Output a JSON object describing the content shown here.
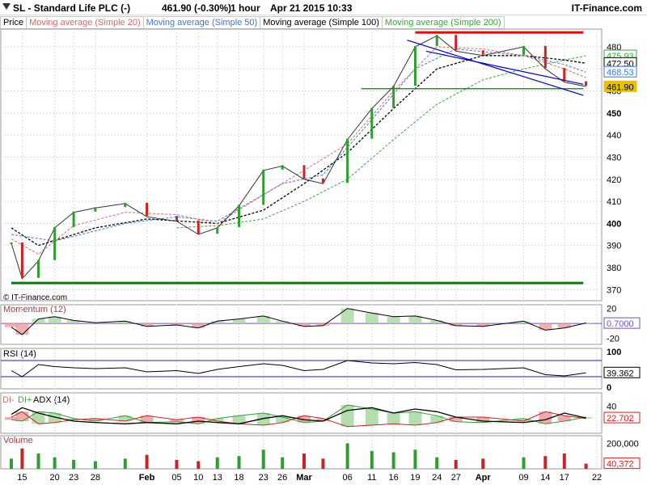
{
  "header": {
    "instrument": "SL - Standard Life PLC (-)",
    "price": "461.90 (-0.30%)",
    "interval": "1 hour",
    "datetime": "Apr 21 2015 10:33",
    "brand": "IT-Finance.com"
  },
  "legend": [
    {
      "label": "Price",
      "color": "#000000"
    },
    {
      "label": "Moving average (Simple 20)",
      "color": "#e06666"
    },
    {
      "label": "Moving average (Simple 50)",
      "color": "#3c78d8"
    },
    {
      "label": "Moving average (Simple 100)",
      "color": "#000000"
    },
    {
      "label": "Moving average (Simple 200)",
      "color": "#38a838"
    }
  ],
  "copyright": "© IT-Finance.com",
  "colors": {
    "up": "#2e9e2e",
    "down": "#cc2222",
    "ma20": "#e06666",
    "ma50": "#3c78d8",
    "ma100": "#000000",
    "ma200": "#38a838",
    "grid": "#dcdcdc"
  },
  "chart_data": [
    {
      "type": "line",
      "panel": "price",
      "ylim": [
        365,
        488
      ],
      "y_ticks": [
        370,
        380,
        390,
        400,
        410,
        420,
        430,
        440,
        450,
        460,
        470,
        480
      ],
      "y_tick_labels": [
        "370",
        "380",
        "390",
        "400",
        "410",
        "420",
        "430",
        "440",
        "450",
        "460",
        "470",
        "480"
      ],
      "x_ticks": [
        {
          "label": "15",
          "x": 0.24
        },
        {
          "label": "20",
          "x": 0.36
        },
        {
          "label": "23",
          "x": 0.43
        },
        {
          "label": "28",
          "x": 0.51
        },
        {
          "label": "Feb",
          "x": 0.7
        },
        {
          "label": "05",
          "x": 0.81
        },
        {
          "label": "10",
          "x": 0.89
        },
        {
          "label": "13",
          "x": 0.96
        },
        {
          "label": "18",
          "x": 1.04
        },
        {
          "label": "23",
          "x": 1.13
        },
        {
          "label": "26",
          "x": 1.2
        },
        {
          "label": "Mar",
          "x": 1.28
        },
        {
          "label": "06",
          "x": 1.44
        },
        {
          "label": "11",
          "x": 1.53
        },
        {
          "label": "16",
          "x": 1.61
        },
        {
          "label": "19",
          "x": 1.69
        },
        {
          "label": "24",
          "x": 1.77
        },
        {
          "label": "27",
          "x": 1.84
        },
        {
          "label": "Apr",
          "x": 1.94
        },
        {
          "label": "09",
          "x": 2.09
        },
        {
          "label": "14",
          "x": 2.17
        },
        {
          "label": "17",
          "x": 2.24
        },
        {
          "label": "22",
          "x": 2.36
        }
      ],
      "price": {
        "x": [
          0.2,
          0.24,
          0.3,
          0.36,
          0.43,
          0.51,
          0.62,
          0.7,
          0.81,
          0.89,
          0.96,
          1.04,
          1.13,
          1.2,
          1.28,
          1.35,
          1.44,
          1.53,
          1.61,
          1.69,
          1.77,
          1.84,
          1.94,
          2.09,
          2.17,
          2.24,
          2.32
        ],
        "y": [
          391,
          375,
          383,
          398,
          405,
          407,
          409,
          403,
          401,
          395,
          398,
          408,
          424,
          426,
          420,
          418,
          438,
          452,
          462,
          480,
          485,
          478,
          476,
          480,
          470,
          464,
          462
        ]
      },
      "ma20": {
        "x": [
          0.2,
          0.3,
          0.43,
          0.62,
          0.81,
          0.96,
          1.13,
          1.28,
          1.44,
          1.61,
          1.77,
          1.94,
          2.09,
          2.24,
          2.32
        ],
        "y": [
          393,
          386,
          399,
          405,
          404,
          400,
          413,
          424,
          436,
          460,
          480,
          479,
          476,
          470,
          466
        ]
      },
      "ma50": {
        "x": [
          0.2,
          0.36,
          0.62,
          0.81,
          0.96,
          1.2,
          1.35,
          1.53,
          1.69,
          1.84,
          2.09,
          2.24,
          2.32
        ],
        "y": [
          395,
          392,
          400,
          403,
          401,
          418,
          422,
          447,
          470,
          479,
          476,
          472,
          468.5
        ]
      },
      "ma100": {
        "x": [
          0.2,
          0.3,
          0.51,
          0.7,
          0.96,
          1.13,
          1.28,
          1.44,
          1.61,
          1.77,
          1.94,
          2.09,
          2.24,
          2.32
        ],
        "y": [
          398,
          390,
          398,
          402,
          400,
          406,
          418,
          432,
          452,
          470,
          476,
          476,
          474,
          472.5
        ]
      },
      "ma200": {
        "x": [
          0.81,
          0.96,
          1.13,
          1.28,
          1.44,
          1.61,
          1.77,
          1.94,
          2.09,
          2.24,
          2.32
        ],
        "y": [
          398,
          399,
          402,
          410,
          420,
          438,
          454,
          465,
          470,
          474,
          475.93
        ]
      },
      "price_labels": [
        {
          "value": "475.93",
          "color": "#38a838",
          "y": 475.93
        },
        {
          "value": "472.50",
          "color": "#000000",
          "y": 472.5
        },
        {
          "value": "468.53",
          "color": "#3c78d8",
          "y": 468.53
        },
        {
          "value": "461.90",
          "color": "#e8c100",
          "y": 461.9
        }
      ],
      "annotations": [
        {
          "kind": "hline",
          "color": "#008000",
          "y": 373,
          "x": [
            0.2,
            2.31
          ]
        },
        {
          "kind": "hline",
          "color": "#ff0000",
          "y": 486.5,
          "x": [
            1.69,
            2.31
          ]
        },
        {
          "kind": "hline",
          "color": "#008000",
          "y": 461,
          "x": [
            1.49,
            2.31
          ]
        },
        {
          "kind": "trend",
          "color": "#0000cc",
          "x": [
            1.66,
            2.31
          ],
          "y": [
            483,
            458
          ]
        },
        {
          "kind": "trend",
          "color": "#0000cc",
          "x": [
            1.73,
            2.31
          ],
          "y": [
            478,
            463
          ]
        }
      ]
    },
    {
      "type": "area",
      "panel": "momentum",
      "title": "Momentum (12)",
      "ylim": [
        -28,
        25
      ],
      "y_tick_labels": [
        "20",
        "0.7000",
        "-20"
      ],
      "last_value": "0.7000",
      "x": [
        0.2,
        0.24,
        0.3,
        0.36,
        0.43,
        0.51,
        0.62,
        0.7,
        0.81,
        0.89,
        0.96,
        1.04,
        1.13,
        1.2,
        1.28,
        1.35,
        1.44,
        1.53,
        1.61,
        1.69,
        1.77,
        1.84,
        1.94,
        2.09,
        2.17,
        2.24,
        2.32
      ],
      "values": [
        -5,
        -15,
        6,
        9,
        4,
        1,
        3,
        -4,
        -2,
        -6,
        3,
        6,
        10,
        3,
        -4,
        -3,
        20,
        14,
        9,
        10,
        4,
        -3,
        -4,
        3,
        -9,
        -6,
        0.7
      ]
    },
    {
      "type": "line",
      "panel": "rsi",
      "title": "RSI (14)",
      "ylim": [
        0,
        100
      ],
      "y_tick_labels": [
        "100",
        "39.362",
        "0"
      ],
      "last_value": "39.362",
      "x": [
        0.2,
        0.24,
        0.3,
        0.36,
        0.43,
        0.51,
        0.62,
        0.7,
        0.81,
        0.89,
        0.96,
        1.04,
        1.13,
        1.2,
        1.28,
        1.35,
        1.44,
        1.53,
        1.61,
        1.69,
        1.77,
        1.84,
        1.94,
        2.09,
        2.17,
        2.24,
        2.32
      ],
      "values": [
        45,
        30,
        60,
        55,
        52,
        50,
        52,
        42,
        45,
        38,
        48,
        55,
        62,
        58,
        45,
        48,
        70,
        64,
        62,
        65,
        60,
        47,
        48,
        52,
        35,
        32,
        39.362
      ]
    },
    {
      "type": "area",
      "panel": "adx",
      "title": "ADX (14)",
      "legend": [
        "DI-",
        "DI+",
        "ADX (14)"
      ],
      "ylim": [
        0,
        60
      ],
      "y_tick_labels": [
        "40",
        "22.702"
      ],
      "last_value": "22.702",
      "x": [
        0.2,
        0.24,
        0.3,
        0.36,
        0.43,
        0.51,
        0.62,
        0.7,
        0.81,
        0.89,
        0.96,
        1.04,
        1.13,
        1.2,
        1.28,
        1.35,
        1.44,
        1.53,
        1.61,
        1.69,
        1.77,
        1.84,
        1.94,
        2.09,
        2.17,
        2.24,
        2.32
      ],
      "di_plus": [
        20,
        18,
        32,
        30,
        22,
        18,
        26,
        16,
        17,
        14,
        22,
        26,
        30,
        24,
        16,
        18,
        42,
        36,
        30,
        32,
        26,
        17,
        16,
        22,
        14,
        18,
        24
      ],
      "di_minus": [
        24,
        32,
        14,
        16,
        20,
        22,
        18,
        26,
        20,
        24,
        18,
        14,
        12,
        16,
        26,
        22,
        10,
        12,
        14,
        12,
        16,
        24,
        24,
        18,
        32,
        26,
        22
      ],
      "adx": [
        28,
        38,
        30,
        24,
        18,
        16,
        14,
        16,
        14,
        18,
        16,
        14,
        22,
        26,
        20,
        18,
        34,
        38,
        30,
        36,
        32,
        24,
        18,
        16,
        20,
        30,
        22.702
      ]
    },
    {
      "type": "bar",
      "panel": "volume",
      "title": "Volume",
      "y_tick_labels": [
        "200,000",
        "40,372"
      ],
      "last_value": "40,372",
      "ylim": [
        0,
        260000
      ],
      "x": [
        0.2,
        0.24,
        0.3,
        0.36,
        0.43,
        0.51,
        0.62,
        0.7,
        0.81,
        0.89,
        0.96,
        1.04,
        1.13,
        1.2,
        1.28,
        1.35,
        1.44,
        1.53,
        1.61,
        1.69,
        1.77,
        1.84,
        1.94,
        2.09,
        2.17,
        2.24,
        2.32
      ],
      "values": [
        80000,
        160000,
        120000,
        90000,
        70000,
        60000,
        80000,
        110000,
        70000,
        60000,
        90000,
        100000,
        150000,
        90000,
        120000,
        80000,
        200000,
        140000,
        130000,
        150000,
        90000,
        70000,
        80000,
        90000,
        100000,
        120000,
        40372
      ]
    }
  ]
}
